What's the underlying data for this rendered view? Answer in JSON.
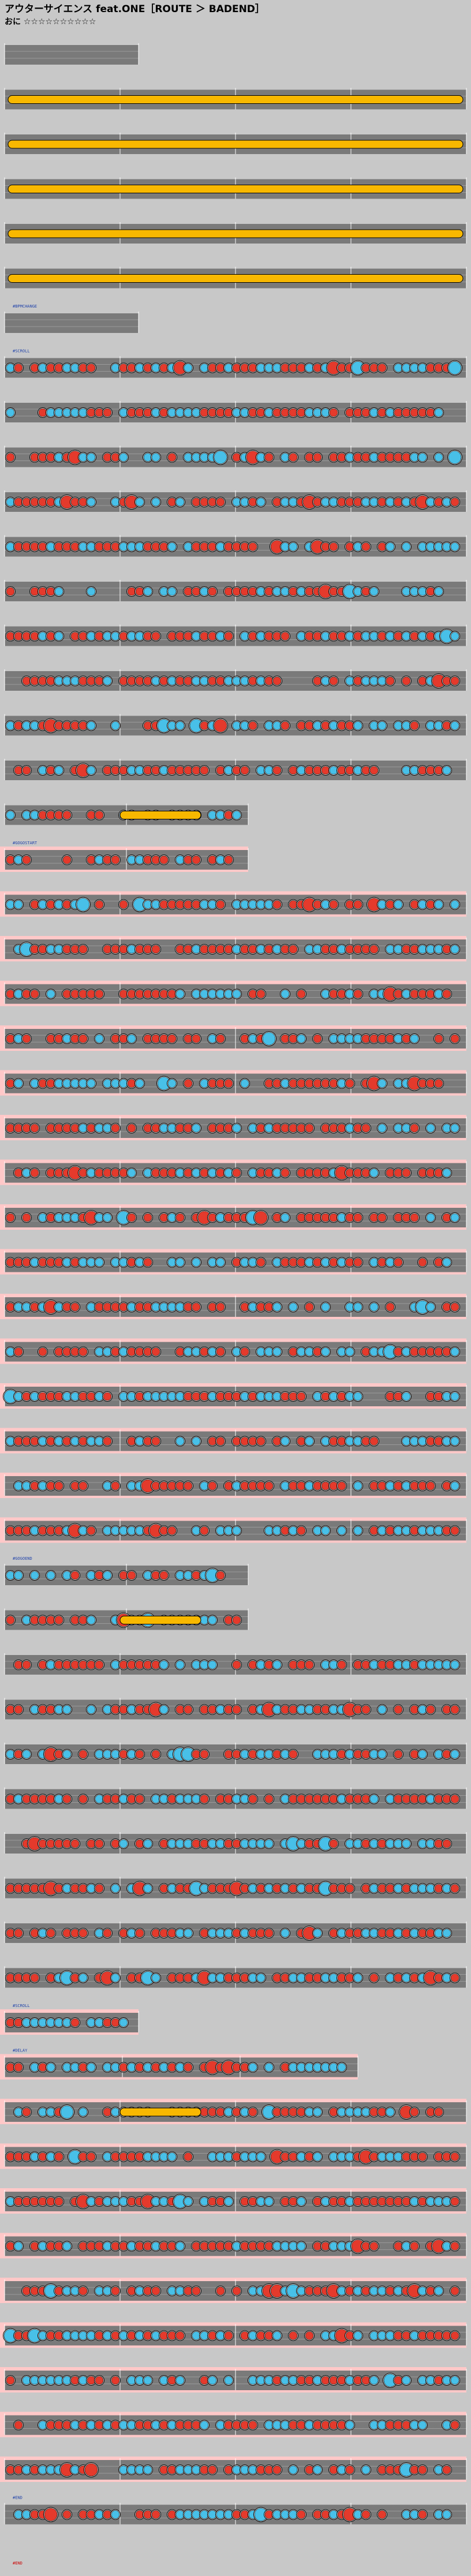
{
  "header": {
    "title": "アウターサイエンス feat.ONE［ROUTE ＞ BADEND］",
    "difficulty_label": "おに",
    "difficulty_stars": "☆☆☆☆☆☆☆☆☆☆"
  },
  "score": {
    "gogo_color": "#ffc8c8",
    "lane_color": "#7a7a7a",
    "lane_line_color": "#ffffff",
    "don_color": "#e43a2c",
    "ka_color": "#48c0e8",
    "roll_color": "#f8b800",
    "balloon_color": "#f07000",
    "measure_line_color": "#ffffff",
    "rows": 56,
    "measures_per_row": 4,
    "section_markers": [
      {
        "row": 6,
        "text": "#BPMCHANGE"
      },
      {
        "row": 7,
        "text": "#SCROLL"
      },
      {
        "row": 18,
        "text": "#GOGOSTART"
      },
      {
        "row": 34,
        "text": "#GOGOEND"
      },
      {
        "row": 44,
        "text": "#SCROLL"
      },
      {
        "row": 45,
        "text": "#DELAY"
      },
      {
        "row": 55,
        "text": "#END"
      }
    ]
  },
  "footer": {
    "label": "#END"
  }
}
